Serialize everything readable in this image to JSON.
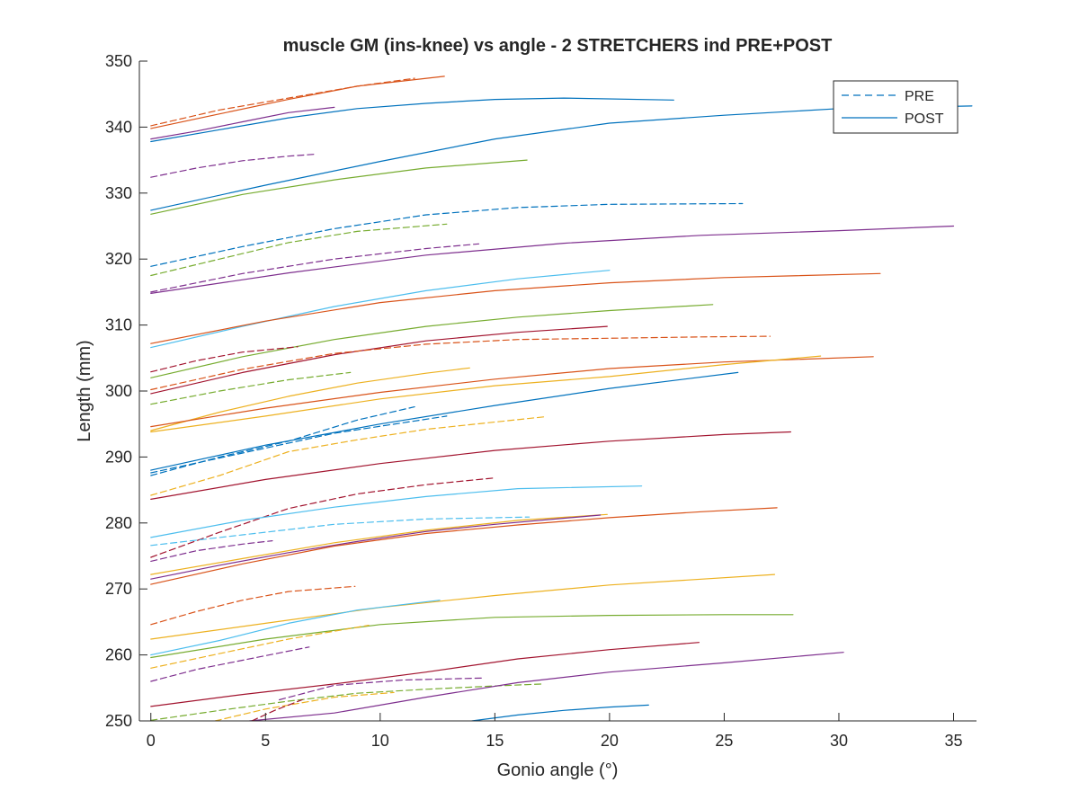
{
  "chart_data": {
    "type": "line",
    "title": "muscle GM (ins-knee) vs angle - 2 STRETCHERS ind PRE+POST",
    "xlabel": "Gonio angle (°)",
    "ylabel": "Length (mm)",
    "xlim": [
      -0.5,
      36
    ],
    "ylim": [
      250,
      350
    ],
    "x_ticks": [
      0,
      5,
      10,
      15,
      20,
      25,
      30,
      35
    ],
    "y_ticks": [
      250,
      260,
      270,
      280,
      290,
      300,
      310,
      320,
      330,
      340,
      350
    ],
    "x_tick_labels": [
      "0",
      "5",
      "10",
      "15",
      "20",
      "25",
      "30",
      "35"
    ],
    "y_tick_labels": [
      "250",
      "260",
      "270",
      "280",
      "290",
      "300",
      "310",
      "320",
      "330",
      "340",
      "350"
    ],
    "grid": false,
    "legend_position": "top-right",
    "legend": [
      {
        "label": "PRE",
        "style": "dashed"
      },
      {
        "label": "POST",
        "style": "solid"
      }
    ],
    "series": [
      {
        "color": "#D95319",
        "style": "dashed",
        "x": [
          0,
          3,
          6,
          9,
          11.5
        ],
        "y": [
          340.2,
          342.6,
          344.4,
          346.2,
          347.4
        ]
      },
      {
        "color": "#D95319",
        "style": "solid",
        "x": [
          0,
          3,
          6,
          9,
          12.8
        ],
        "y": [
          339.8,
          342,
          344.2,
          346.2,
          347.7
        ]
      },
      {
        "color": "#7E2F8E",
        "style": "solid",
        "x": [
          0,
          2,
          4,
          6,
          8
        ],
        "y": [
          338.2,
          339.4,
          340.8,
          342.2,
          343
        ]
      },
      {
        "color": "#0072BD",
        "style": "solid",
        "x": [
          0,
          3,
          6,
          9,
          12,
          15,
          18,
          22.8
        ],
        "y": [
          337.8,
          339.6,
          341.4,
          342.8,
          343.6,
          344.2,
          344.4,
          344.1
        ]
      },
      {
        "color": "#7E2F8E",
        "style": "dashed",
        "x": [
          0,
          2,
          4,
          6,
          7.2
        ],
        "y": [
          332.4,
          333.8,
          334.9,
          335.6,
          335.9
        ]
      },
      {
        "color": "#0072BD",
        "style": "solid",
        "x": [
          0,
          5,
          10,
          15,
          20,
          25,
          30,
          35.8
        ],
        "y": [
          327.4,
          331.2,
          334.8,
          338.2,
          340.6,
          341.8,
          342.8,
          343.2
        ]
      },
      {
        "color": "#77AC30",
        "style": "solid",
        "x": [
          0,
          4,
          8,
          12,
          16.4
        ],
        "y": [
          326.8,
          329.8,
          332,
          333.8,
          335
        ]
      },
      {
        "color": "#0072BD",
        "style": "dashed",
        "x": [
          0,
          4,
          8,
          12,
          16,
          20,
          25.8
        ],
        "y": [
          318.9,
          321.9,
          324.6,
          326.7,
          327.8,
          328.3,
          328.4
        ]
      },
      {
        "color": "#77AC30",
        "style": "dashed",
        "x": [
          0,
          3,
          6,
          9,
          12.9
        ],
        "y": [
          317.5,
          320,
          322.5,
          324.2,
          325.3
        ]
      },
      {
        "color": "#7E2F8E",
        "style": "dashed",
        "x": [
          0,
          4,
          8,
          12,
          14.3
        ],
        "y": [
          315,
          317.8,
          320,
          321.6,
          322.3
        ]
      },
      {
        "color": "#7E2F8E",
        "style": "solid",
        "x": [
          0,
          6,
          12,
          18,
          24,
          30,
          35
        ],
        "y": [
          314.8,
          317.9,
          320.6,
          322.4,
          323.6,
          324.3,
          325
        ]
      },
      {
        "color": "#4DBEEE",
        "style": "solid",
        "x": [
          0,
          4,
          8,
          12,
          16,
          20
        ],
        "y": [
          306.6,
          309.8,
          312.8,
          315.2,
          317,
          318.3
        ]
      },
      {
        "color": "#D95319",
        "style": "solid",
        "x": [
          0,
          5,
          10,
          15,
          20,
          25,
          31.8
        ],
        "y": [
          307.2,
          310.6,
          313.4,
          315.2,
          316.4,
          317.2,
          317.8
        ]
      },
      {
        "color": "#77AC30",
        "style": "solid",
        "x": [
          0,
          4,
          8,
          12,
          16,
          20,
          24.5
        ],
        "y": [
          302,
          305.2,
          307.8,
          309.8,
          311.2,
          312.2,
          313.1
        ]
      },
      {
        "color": "#A2142F",
        "style": "solid",
        "x": [
          0,
          4,
          8,
          12,
          16,
          19.9
        ],
        "y": [
          299.6,
          302.8,
          305.5,
          307.6,
          308.9,
          309.8
        ]
      },
      {
        "color": "#D95319",
        "style": "dashed",
        "x": [
          0,
          4,
          8,
          12,
          16,
          20,
          24,
          27
        ],
        "y": [
          300.2,
          303.3,
          305.7,
          307.1,
          307.8,
          308,
          308.2,
          308.3
        ]
      },
      {
        "color": "#A2142F",
        "style": "dashed",
        "x": [
          0,
          2,
          4,
          6.4
        ],
        "y": [
          302.9,
          304.6,
          305.9,
          306.7
        ]
      },
      {
        "color": "#77AC30",
        "style": "dashed",
        "x": [
          0,
          3,
          6,
          8.7
        ],
        "y": [
          298,
          300,
          301.7,
          302.8
        ]
      },
      {
        "color": "#EDB120",
        "style": "solid",
        "x": [
          0,
          3,
          6,
          9,
          12,
          13.9
        ],
        "y": [
          294,
          296.8,
          299.2,
          301.2,
          302.7,
          303.5
        ]
      },
      {
        "color": "#D95319",
        "style": "solid",
        "x": [
          0,
          5,
          10,
          15,
          20,
          25,
          31.5
        ],
        "y": [
          294.6,
          297.4,
          299.8,
          301.8,
          303.4,
          304.4,
          305.2
        ]
      },
      {
        "color": "#EDB120",
        "style": "solid",
        "x": [
          0,
          5,
          10,
          15,
          20,
          25,
          29.2
        ],
        "y": [
          293.8,
          296.2,
          298.8,
          300.8,
          302.2,
          304,
          305.3
        ]
      },
      {
        "color": "#0072BD",
        "style": "dashed",
        "x": [
          0,
          3,
          6,
          9,
          11.5
        ],
        "y": [
          287.2,
          290,
          292.4,
          295.6,
          297.6
        ]
      },
      {
        "color": "#0072BD",
        "style": "dashed",
        "x": [
          0,
          4,
          8,
          12.9
        ],
        "y": [
          287.6,
          290.6,
          293.6,
          296.2
        ]
      },
      {
        "color": "#0072BD",
        "style": "solid",
        "x": [
          0,
          5,
          10,
          15,
          20,
          25.6
        ],
        "y": [
          288,
          291.8,
          295,
          297.8,
          300.4,
          302.8
        ]
      },
      {
        "color": "#EDB120",
        "style": "dashed",
        "x": [
          0,
          3,
          6,
          9,
          12,
          17.2
        ],
        "y": [
          284.2,
          287.2,
          290.8,
          292.6,
          294.2,
          296.1
        ]
      },
      {
        "color": "#A2142F",
        "style": "solid",
        "x": [
          0,
          5,
          10,
          15,
          20,
          25,
          27.9
        ],
        "y": [
          283.6,
          286.6,
          289,
          291,
          292.4,
          293.4,
          293.8
        ]
      },
      {
        "color": "#A2142F",
        "style": "dashed",
        "x": [
          0,
          3,
          6,
          9,
          12,
          14.9
        ],
        "y": [
          274.8,
          278.6,
          282.2,
          284.4,
          285.8,
          286.8
        ]
      },
      {
        "color": "#4DBEEE",
        "style": "solid",
        "x": [
          0,
          4,
          8,
          12,
          16,
          21.4
        ],
        "y": [
          277.8,
          280.4,
          282.4,
          284,
          285.2,
          285.6
        ]
      },
      {
        "color": "#4DBEEE",
        "style": "dashed",
        "x": [
          0,
          4,
          8,
          12,
          16.5
        ],
        "y": [
          276.6,
          278.2,
          279.8,
          280.6,
          280.9
        ]
      },
      {
        "color": "#7E2F8E",
        "style": "dashed",
        "x": [
          0,
          2,
          4,
          5.3
        ],
        "y": [
          274.2,
          275.8,
          276.8,
          277.3
        ]
      },
      {
        "color": "#EDB120",
        "style": "solid",
        "x": [
          0,
          4,
          8,
          12,
          16,
          19.9
        ],
        "y": [
          272.2,
          274.6,
          277,
          278.9,
          280.4,
          281.3
        ]
      },
      {
        "color": "#7E2F8E",
        "style": "solid",
        "x": [
          0,
          3,
          6,
          9,
          12,
          15,
          19.6
        ],
        "y": [
          271.5,
          273.6,
          275.5,
          277.2,
          278.7,
          279.8,
          281.2
        ]
      },
      {
        "color": "#D95319",
        "style": "solid",
        "x": [
          0,
          4,
          8,
          12,
          16,
          20,
          24,
          27.3
        ],
        "y": [
          270.7,
          273.8,
          276.5,
          278.4,
          279.7,
          280.8,
          281.7,
          282.3
        ]
      },
      {
        "color": "#D95319",
        "style": "dashed",
        "x": [
          0,
          2,
          4,
          6,
          8.9
        ],
        "y": [
          264.6,
          266.6,
          268.3,
          269.6,
          270.4
        ]
      },
      {
        "color": "#EDB120",
        "style": "solid",
        "x": [
          0,
          5,
          10,
          15,
          20,
          27.2
        ],
        "y": [
          262.4,
          264.8,
          267.2,
          269,
          270.6,
          272.2
        ]
      },
      {
        "color": "#4DBEEE",
        "style": "solid",
        "x": [
          0,
          3,
          6,
          9,
          12.6
        ],
        "y": [
          260,
          262.2,
          264.8,
          266.8,
          268.3
        ]
      },
      {
        "color": "#77AC30",
        "style": "solid",
        "x": [
          0,
          5,
          10,
          15,
          20,
          25,
          28
        ],
        "y": [
          259.6,
          262.4,
          264.6,
          265.7,
          266,
          266.1,
          266.1
        ]
      },
      {
        "color": "#EDB120",
        "style": "dashed",
        "x": [
          0,
          3,
          6,
          9.5
        ],
        "y": [
          258,
          260.2,
          262.4,
          264.5
        ]
      },
      {
        "color": "#7E2F8E",
        "style": "dashed",
        "x": [
          0,
          2,
          4,
          6.9
        ],
        "y": [
          256,
          257.8,
          259.2,
          261.2
        ]
      },
      {
        "color": "#A2142F",
        "style": "solid",
        "x": [
          0,
          4,
          8,
          12,
          16,
          20,
          23.9
        ],
        "y": [
          252.2,
          254,
          255.6,
          257.4,
          259.4,
          260.8,
          261.9
        ]
      },
      {
        "color": "#7E2F8E",
        "style": "dashed",
        "x": [
          5.6,
          8,
          11,
          14.5
        ],
        "y": [
          253.2,
          255.4,
          256.2,
          256.5
        ]
      },
      {
        "color": "#77AC30",
        "style": "dashed",
        "x": [
          0,
          3,
          6,
          9,
          12,
          15,
          17.1
        ],
        "y": [
          250.1,
          251.6,
          253,
          254.2,
          254.8,
          255.3,
          255.6
        ]
      },
      {
        "color": "#EDB120",
        "style": "dashed",
        "x": [
          2.8,
          5,
          8,
          10.6
        ],
        "y": [
          250,
          251.8,
          253.6,
          254.3
        ]
      },
      {
        "color": "#7E2F8E",
        "style": "solid",
        "x": [
          4.3,
          8,
          12,
          16,
          20,
          25,
          30.2
        ],
        "y": [
          250,
          251.2,
          253.6,
          255.8,
          257.4,
          258.8,
          260.4
        ]
      },
      {
        "color": "#A2142F",
        "style": "dashed",
        "x": [
          4.4,
          5.4,
          6.6
        ],
        "y": [
          250,
          251.6,
          253.2
        ]
      },
      {
        "color": "#0072BD",
        "style": "solid",
        "x": [
          14,
          16,
          18,
          20,
          21.7
        ],
        "y": [
          250,
          250.9,
          251.6,
          252.1,
          252.4
        ]
      }
    ]
  }
}
